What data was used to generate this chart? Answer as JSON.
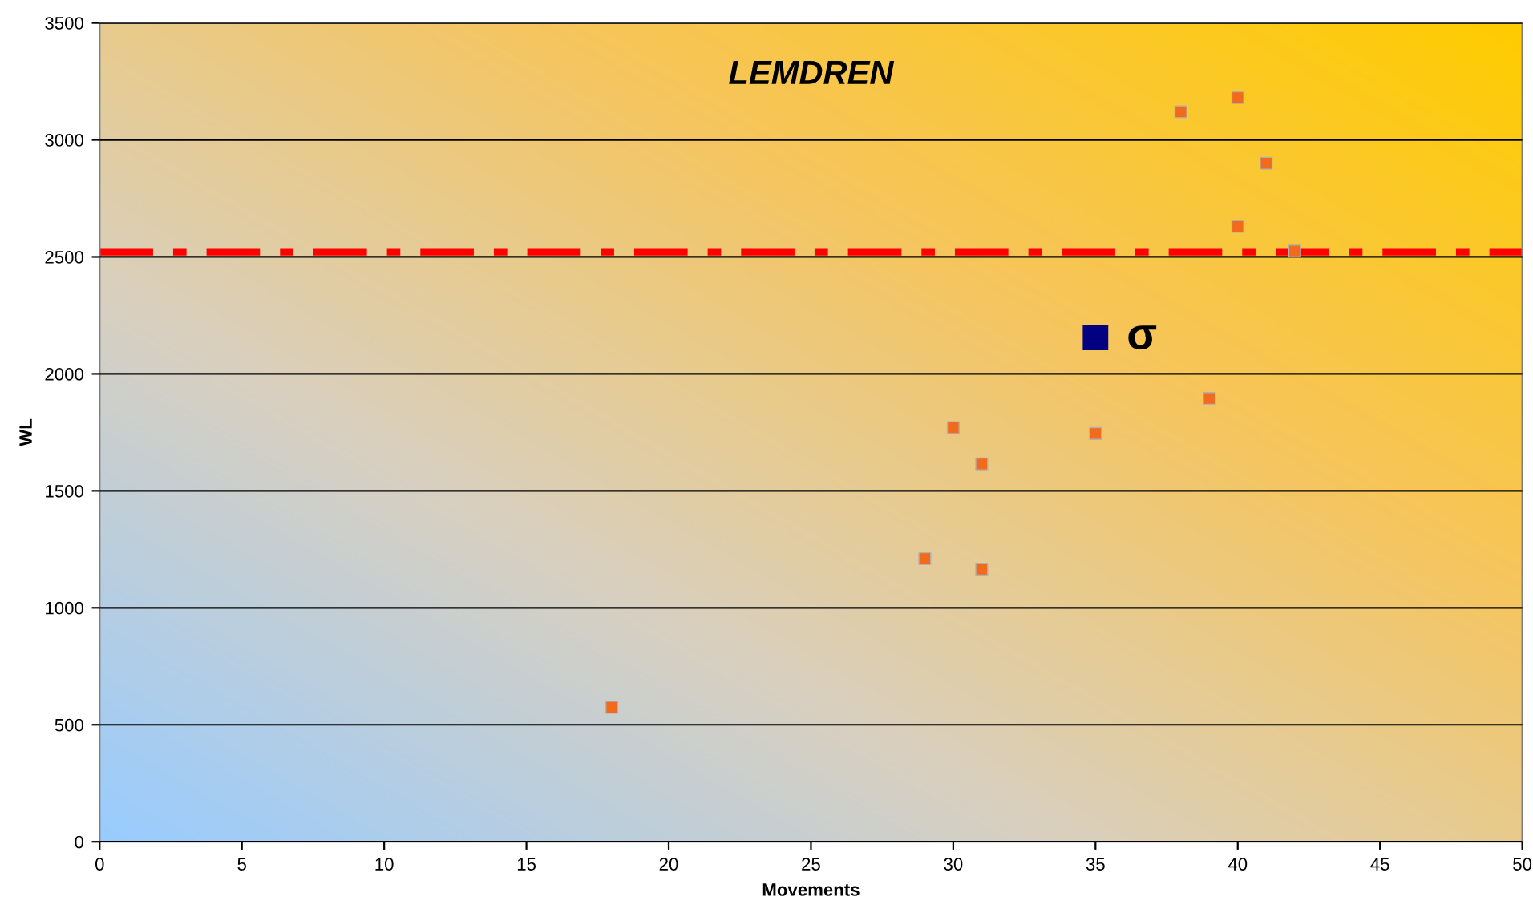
{
  "chart_data": {
    "type": "scatter",
    "title": "LEMDREN",
    "xlabel": "Movements",
    "ylabel": "WL",
    "xlim": [
      0,
      50
    ],
    "xticks": [
      0,
      5,
      10,
      15,
      20,
      25,
      30,
      35,
      40,
      45,
      50
    ],
    "ylim": [
      0,
      3500
    ],
    "yticks": [
      0,
      500,
      1000,
      1500,
      2000,
      2500,
      3000,
      3500
    ],
    "grid": "y",
    "marker": "square",
    "legend": false,
    "series": [
      {
        "color": "#f26b1d",
        "x": [
          18,
          29,
          30,
          31,
          31,
          35,
          38,
          39,
          40,
          40,
          41,
          42
        ],
        "values": [
          575,
          1210,
          1770,
          1615,
          1165,
          1745,
          3120,
          1895,
          3180,
          2630,
          2900,
          2525
        ]
      },
      {
        "name": "σ",
        "color": "#000080",
        "x": [
          35
        ],
        "values": [
          2155
        ]
      }
    ],
    "ref_lines": [
      {
        "axis": "y",
        "value": 2520,
        "color": "#ff0000",
        "line_style": "dashdot"
      }
    ]
  }
}
